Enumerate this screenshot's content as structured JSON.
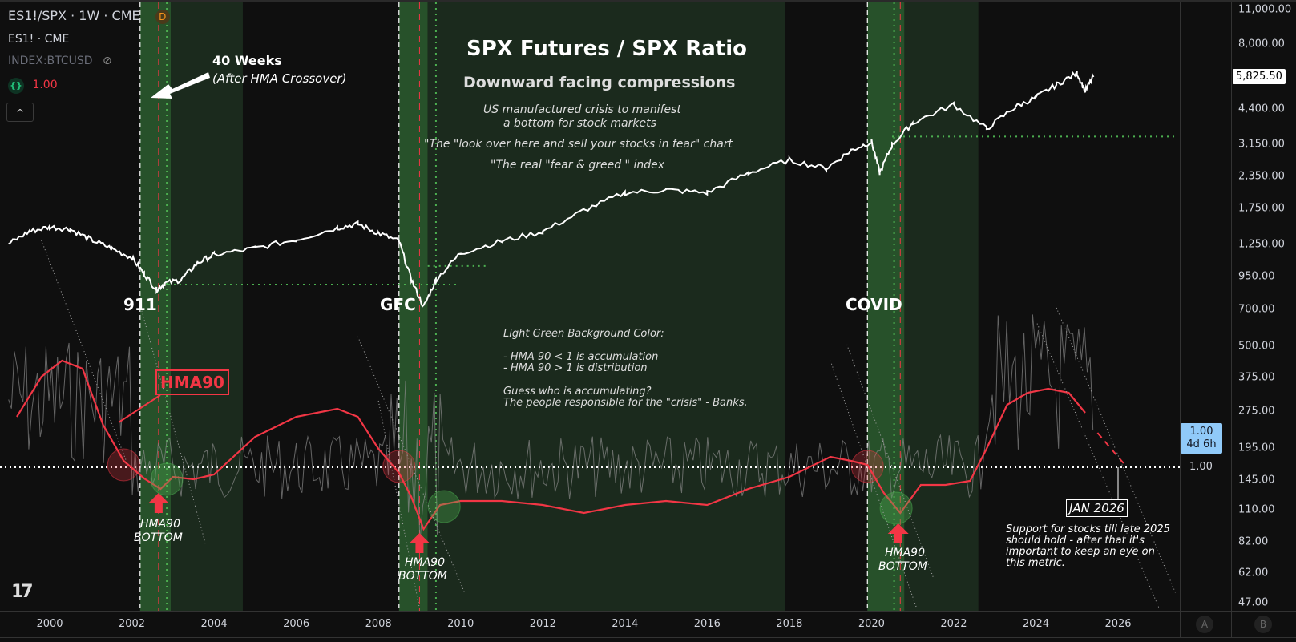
{
  "legend": {
    "main_symbol": "ES1!/SPX · 1W · CME",
    "badge": "D",
    "symbol2": "ES1! · CME",
    "symbol3": "INDEX:BTCUSD",
    "indicator_value": "1.00",
    "collapse": "^"
  },
  "annotations": {
    "title": "SPX Futures / SPX Ratio",
    "subtitle": "Downward facing compressions",
    "line1a": "US manufactured crisis to manifest",
    "line1b": "a bottom for stock markets",
    "line2": "\"The \"look over here and sell your stocks in fear\" chart",
    "line3": "\"The real \"fear & greed \" index",
    "weeks_title": "40 Weeks",
    "weeks_sub": "(After HMA Crossover)",
    "event_911": "911",
    "event_gfc": "GFC",
    "event_covid": "COVID",
    "hma_label": "HMA90",
    "note_title": "Light Green Background Color:",
    "note_l1": "- HMA 90 < 1 is accumulation",
    "note_l2": "- HMA 90 > 1 is distribution",
    "note_l3": "Guess who is accumulating?",
    "note_l4": "The people responsible for the \"crisis\" - Banks.",
    "bottom_a1": "HMA90",
    "bottom_a2": "BOTTOM",
    "bottom_b1": "HMA90",
    "bottom_b2": "BOTTOM",
    "bottom_c1": "HMA90",
    "bottom_c2": "BOTTOM",
    "jan2026": "JAN 2026",
    "support1": "Support for stocks till late 2025",
    "support2": "should hold - after that it's",
    "support3": "important to keep an eye on",
    "support4": "this metric."
  },
  "chart_data": {
    "type": "line",
    "title": "SPX Futures / SPX Ratio",
    "x_range": [
      1999,
      2028
    ],
    "xticks": [
      "2000",
      "2002",
      "2004",
      "2006",
      "2008",
      "2010",
      "2012",
      "2014",
      "2016",
      "2018",
      "2020",
      "2022",
      "2024",
      "2026"
    ],
    "yticks": [
      "11,000.00",
      "8,000.00",
      "4,400.00",
      "3,150.00",
      "2,350.00",
      "1,750.00",
      "1,250.00",
      "950.00",
      "700.00",
      "500.00",
      "375.00",
      "275.00",
      "195.00",
      "145.00",
      "110.00",
      "82.00",
      "62.00",
      "47.00"
    ],
    "last_price": "5,825.50",
    "ratio_last": "1.00",
    "ratio_countdown": "4d 6h",
    "ratio_level": "1.00",
    "scale_buttons": [
      "A",
      "B"
    ],
    "series": [
      {
        "name": "SPX",
        "color": "#ffffff",
        "x": [
          1999.0,
          1999.5,
          2000.0,
          2000.5,
          2001.0,
          2001.5,
          2002.0,
          2002.3,
          2002.6,
          2002.8,
          2003.2,
          2003.6,
          2004.0,
          2005.0,
          2006.0,
          2007.0,
          2007.5,
          2008.0,
          2008.5,
          2008.8,
          2009.1,
          2009.4,
          2010.0,
          2011.0,
          2012.0,
          2013.0,
          2014.0,
          2015.0,
          2016.0,
          2017.0,
          2018.0,
          2018.9,
          2019.5,
          2020.0,
          2020.2,
          2020.5,
          2021.0,
          2022.0,
          2022.8,
          2023.5,
          2024.0,
          2024.5,
          2025.0,
          2025.2,
          2025.4
        ],
        "y": [
          1250,
          1400,
          1460,
          1430,
          1300,
          1200,
          1100,
          950,
          820,
          870,
          900,
          1050,
          1130,
          1200,
          1300,
          1450,
          1500,
          1380,
          1280,
          900,
          700,
          900,
          1150,
          1280,
          1400,
          1700,
          2000,
          2050,
          2000,
          2400,
          2700,
          2500,
          2950,
          3200,
          2400,
          3100,
          3800,
          4500,
          3600,
          4400,
          4800,
          5400,
          6000,
          5100,
          5825.5
        ]
      },
      {
        "name": "HMA90 ratio (red)",
        "color": "#f23645"
      },
      {
        "name": "Ratio (grey)",
        "color": "#888888"
      }
    ],
    "shaded_periods": [
      {
        "start": 2002.2,
        "end": 2002.95,
        "shade": "light"
      },
      {
        "start": 2002.95,
        "end": 2004.7,
        "shade": "dark"
      },
      {
        "start": 2008.5,
        "end": 2009.2,
        "shade": "light"
      },
      {
        "start": 2009.2,
        "end": 2017.9,
        "shade": "dark"
      },
      {
        "start": 2019.9,
        "end": 2020.8,
        "shade": "light"
      },
      {
        "start": 2020.8,
        "end": 2022.6,
        "shade": "dark"
      }
    ],
    "colors": {
      "light_shade": "#27512a",
      "dark_shade": "#1b2a1d",
      "red": "#f23645",
      "green_dot": "#4caf50"
    }
  }
}
